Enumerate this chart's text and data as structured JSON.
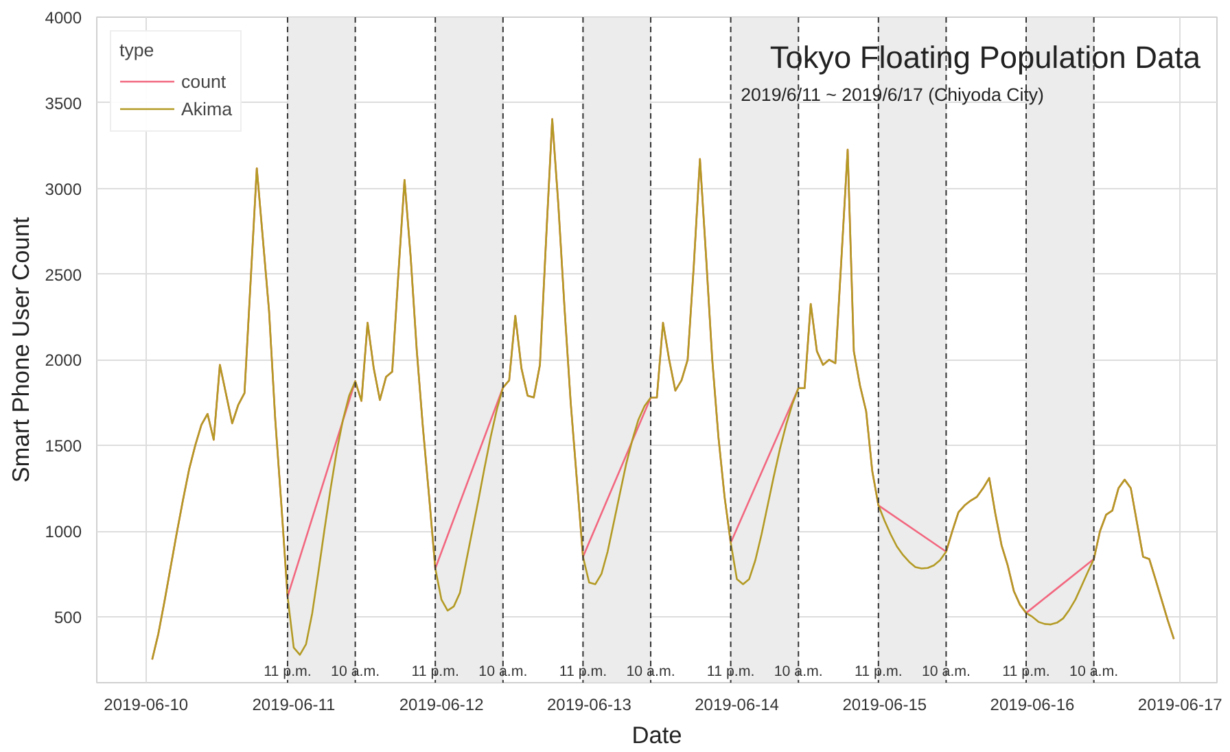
{
  "chart_data": {
    "type": "line",
    "title": "Tokyo Floating Population Data",
    "subtitle": "2019/6/11 ~ 2019/6/17 (Chiyoda City)",
    "xlabel": "Date",
    "ylabel": "Smart Phone User Count",
    "legend_title": "type",
    "legend": "top left",
    "grid": true,
    "xlim": [
      "2019-06-09T16:00",
      "2019-06-17T06:00"
    ],
    "xticks": [
      {
        "value": "2019-06-10",
        "label": "2019-06-10"
      },
      {
        "value": "2019-06-11",
        "label": "2019-06-11"
      },
      {
        "value": "2019-06-12",
        "label": "2019-06-12"
      },
      {
        "value": "2019-06-13",
        "label": "2019-06-13"
      },
      {
        "value": "2019-06-14",
        "label": "2019-06-14"
      },
      {
        "value": "2019-06-15",
        "label": "2019-06-15"
      },
      {
        "value": "2019-06-16",
        "label": "2019-06-16"
      },
      {
        "value": "2019-06-17",
        "label": "2019-06-17"
      }
    ],
    "ylim": [
      115,
      4000
    ],
    "yticks": [
      500,
      1000,
      1500,
      2000,
      2500,
      3000,
      3500,
      4000
    ],
    "x": [
      "2019-06-10T01:00",
      "2019-06-10T02:00",
      "2019-06-10T03:00",
      "2019-06-10T04:00",
      "2019-06-10T05:00",
      "2019-06-10T06:00",
      "2019-06-10T07:00",
      "2019-06-10T08:00",
      "2019-06-10T09:00",
      "2019-06-10T10:00",
      "2019-06-10T11:00",
      "2019-06-10T12:00",
      "2019-06-10T13:00",
      "2019-06-10T14:00",
      "2019-06-10T15:00",
      "2019-06-10T16:00",
      "2019-06-10T17:00",
      "2019-06-10T18:00",
      "2019-06-10T19:00",
      "2019-06-10T20:00",
      "2019-06-10T21:00",
      "2019-06-10T22:00",
      "2019-06-10T23:00",
      "2019-06-11T00:00",
      "2019-06-11T01:00",
      "2019-06-11T02:00",
      "2019-06-11T03:00",
      "2019-06-11T04:00",
      "2019-06-11T05:00",
      "2019-06-11T06:00",
      "2019-06-11T07:00",
      "2019-06-11T08:00",
      "2019-06-11T09:00",
      "2019-06-11T10:00",
      "2019-06-11T11:00",
      "2019-06-11T12:00",
      "2019-06-11T13:00",
      "2019-06-11T14:00",
      "2019-06-11T15:00",
      "2019-06-11T16:00",
      "2019-06-11T17:00",
      "2019-06-11T18:00",
      "2019-06-11T19:00",
      "2019-06-11T20:00",
      "2019-06-11T21:00",
      "2019-06-11T22:00",
      "2019-06-11T23:00",
      "2019-06-12T00:00",
      "2019-06-12T01:00",
      "2019-06-12T02:00",
      "2019-06-12T03:00",
      "2019-06-12T04:00",
      "2019-06-12T05:00",
      "2019-06-12T06:00",
      "2019-06-12T07:00",
      "2019-06-12T08:00",
      "2019-06-12T09:00",
      "2019-06-12T10:00",
      "2019-06-12T11:00",
      "2019-06-12T12:00",
      "2019-06-12T13:00",
      "2019-06-12T14:00",
      "2019-06-12T15:00",
      "2019-06-12T16:00",
      "2019-06-12T17:00",
      "2019-06-12T18:00",
      "2019-06-12T19:00",
      "2019-06-12T20:00",
      "2019-06-12T21:00",
      "2019-06-12T22:00",
      "2019-06-12T23:00",
      "2019-06-13T00:00",
      "2019-06-13T01:00",
      "2019-06-13T02:00",
      "2019-06-13T03:00",
      "2019-06-13T04:00",
      "2019-06-13T05:00",
      "2019-06-13T06:00",
      "2019-06-13T07:00",
      "2019-06-13T08:00",
      "2019-06-13T09:00",
      "2019-06-13T10:00",
      "2019-06-13T11:00",
      "2019-06-13T12:00",
      "2019-06-13T13:00",
      "2019-06-13T14:00",
      "2019-06-13T15:00",
      "2019-06-13T16:00",
      "2019-06-13T17:00",
      "2019-06-13T18:00",
      "2019-06-13T19:00",
      "2019-06-13T20:00",
      "2019-06-13T21:00",
      "2019-06-13T22:00",
      "2019-06-13T23:00",
      "2019-06-14T00:00",
      "2019-06-14T01:00",
      "2019-06-14T02:00",
      "2019-06-14T03:00",
      "2019-06-14T04:00",
      "2019-06-14T05:00",
      "2019-06-14T06:00",
      "2019-06-14T07:00",
      "2019-06-14T08:00",
      "2019-06-14T09:00",
      "2019-06-14T10:00",
      "2019-06-14T11:00",
      "2019-06-14T12:00",
      "2019-06-14T13:00",
      "2019-06-14T14:00",
      "2019-06-14T15:00",
      "2019-06-14T16:00",
      "2019-06-14T17:00",
      "2019-06-14T18:00",
      "2019-06-14T19:00",
      "2019-06-14T20:00",
      "2019-06-14T21:00",
      "2019-06-14T22:00",
      "2019-06-14T23:00",
      "2019-06-15T00:00",
      "2019-06-15T01:00",
      "2019-06-15T02:00",
      "2019-06-15T03:00",
      "2019-06-15T04:00",
      "2019-06-15T05:00",
      "2019-06-15T06:00",
      "2019-06-15T07:00",
      "2019-06-15T08:00",
      "2019-06-15T09:00",
      "2019-06-15T10:00",
      "2019-06-15T11:00",
      "2019-06-15T12:00",
      "2019-06-15T13:00",
      "2019-06-15T14:00",
      "2019-06-15T15:00",
      "2019-06-15T16:00",
      "2019-06-15T17:00",
      "2019-06-15T18:00",
      "2019-06-15T19:00",
      "2019-06-15T20:00",
      "2019-06-15T21:00",
      "2019-06-15T22:00",
      "2019-06-15T23:00",
      "2019-06-16T00:00",
      "2019-06-16T01:00",
      "2019-06-16T02:00",
      "2019-06-16T03:00",
      "2019-06-16T04:00",
      "2019-06-16T05:00",
      "2019-06-16T06:00",
      "2019-06-16T07:00",
      "2019-06-16T08:00",
      "2019-06-16T09:00",
      "2019-06-16T10:00",
      "2019-06-16T11:00",
      "2019-06-16T12:00",
      "2019-06-16T13:00",
      "2019-06-16T14:00",
      "2019-06-16T15:00",
      "2019-06-16T16:00",
      "2019-06-16T17:00",
      "2019-06-16T18:00",
      "2019-06-16T19:00",
      "2019-06-16T20:00",
      "2019-06-16T21:00",
      "2019-06-16T22:00",
      "2019-06-16T23:00"
    ],
    "series": [
      {
        "name": "count",
        "color": "#f2677f",
        "x": [
          "2019-06-10T01:00",
          "2019-06-10T02:00",
          "2019-06-10T03:00",
          "2019-06-10T04:00",
          "2019-06-10T05:00",
          "2019-06-10T06:00",
          "2019-06-10T07:00",
          "2019-06-10T08:00",
          "2019-06-10T09:00",
          "2019-06-10T10:00",
          "2019-06-10T11:00",
          "2019-06-10T12:00",
          "2019-06-10T13:00",
          "2019-06-10T14:00",
          "2019-06-10T15:00",
          "2019-06-10T16:00",
          "2019-06-10T17:00",
          "2019-06-10T18:00",
          "2019-06-10T19:00",
          "2019-06-10T20:00",
          "2019-06-10T21:00",
          "2019-06-10T22:00",
          "2019-06-10T23:00",
          "2019-06-11T10:00",
          "2019-06-11T11:00",
          "2019-06-11T12:00",
          "2019-06-11T13:00",
          "2019-06-11T14:00",
          "2019-06-11T15:00",
          "2019-06-11T16:00",
          "2019-06-11T17:00",
          "2019-06-11T18:00",
          "2019-06-11T19:00",
          "2019-06-11T20:00",
          "2019-06-11T21:00",
          "2019-06-11T22:00",
          "2019-06-11T23:00",
          "2019-06-12T10:00",
          "2019-06-12T11:00",
          "2019-06-12T12:00",
          "2019-06-12T13:00",
          "2019-06-12T14:00",
          "2019-06-12T15:00",
          "2019-06-12T16:00",
          "2019-06-12T17:00",
          "2019-06-12T18:00",
          "2019-06-12T19:00",
          "2019-06-12T20:00",
          "2019-06-12T21:00",
          "2019-06-12T22:00",
          "2019-06-12T23:00",
          "2019-06-13T10:00",
          "2019-06-13T11:00",
          "2019-06-13T12:00",
          "2019-06-13T13:00",
          "2019-06-13T14:00",
          "2019-06-13T15:00",
          "2019-06-13T16:00",
          "2019-06-13T17:00",
          "2019-06-13T18:00",
          "2019-06-13T19:00",
          "2019-06-13T20:00",
          "2019-06-13T21:00",
          "2019-06-13T22:00",
          "2019-06-13T23:00",
          "2019-06-14T10:00",
          "2019-06-14T11:00",
          "2019-06-14T12:00",
          "2019-06-14T13:00",
          "2019-06-14T14:00",
          "2019-06-14T15:00",
          "2019-06-14T16:00",
          "2019-06-14T17:00",
          "2019-06-14T18:00",
          "2019-06-14T19:00",
          "2019-06-14T20:00",
          "2019-06-14T21:00",
          "2019-06-14T22:00",
          "2019-06-14T23:00",
          "2019-06-15T10:00",
          "2019-06-15T11:00",
          "2019-06-15T12:00",
          "2019-06-15T13:00",
          "2019-06-15T14:00",
          "2019-06-15T15:00",
          "2019-06-15T16:00",
          "2019-06-15T17:00",
          "2019-06-15T18:00",
          "2019-06-15T19:00",
          "2019-06-15T20:00",
          "2019-06-15T21:00",
          "2019-06-15T22:00",
          "2019-06-15T23:00",
          "2019-06-16T10:00",
          "2019-06-16T11:00",
          "2019-06-16T12:00",
          "2019-06-16T13:00",
          "2019-06-16T14:00",
          "2019-06-16T15:00",
          "2019-06-16T16:00",
          "2019-06-16T17:00",
          "2019-06-16T18:00",
          "2019-06-16T19:00",
          "2019-06-16T20:00",
          "2019-06-16T21:00",
          "2019-06-16T22:00",
          "2019-06-16T23:00"
        ],
        "values": [
          250,
          400,
          590,
          790,
          990,
          1180,
          1360,
          1500,
          1620,
          1684,
          1533,
          1970,
          1800,
          1629,
          1738,
          1806,
          2460,
          3118,
          2700,
          2280,
          1650,
          1150,
          618,
          1875,
          1760,
          2216,
          1950,
          1765,
          1900,
          1930,
          2500,
          3050,
          2600,
          2050,
          1600,
          1200,
          782,
          1838,
          1880,
          2257,
          1950,
          1790,
          1780,
          1970,
          2700,
          3405,
          2900,
          2300,
          1750,
          1300,
          850,
          1779,
          1780,
          2216,
          2000,
          1820,
          1880,
          2000,
          2550,
          3172,
          2600,
          2000,
          1550,
          1200,
          932,
          1834,
          1834,
          2326,
          2050,
          1970,
          2000,
          1980,
          2600,
          3227,
          2050,
          1850,
          1700,
          1350,
          1150,
          880,
          1000,
          1110,
          1150,
          1178,
          1200,
          1250,
          1310,
          1100,
          918,
          800,
          650,
          570,
          522,
          837,
          1000,
          1096,
          1120,
          1250,
          1300,
          1250,
          1050,
          850,
          837,
          720,
          600,
          480,
          370
        ]
      },
      {
        "name": "Akima",
        "color": "#b39a24",
        "values": [
          250,
          400,
          590,
          790,
          990,
          1180,
          1360,
          1500,
          1620,
          1684,
          1533,
          1970,
          1800,
          1629,
          1738,
          1806,
          2460,
          3118,
          2700,
          2280,
          1650,
          1150,
          618,
          320,
          278,
          340,
          520,
          760,
          1010,
          1250,
          1470,
          1650,
          1790,
          1875,
          1760,
          2216,
          1950,
          1765,
          1900,
          1930,
          2500,
          3050,
          2600,
          2050,
          1600,
          1200,
          782,
          600,
          536,
          560,
          640,
          820,
          1000,
          1180,
          1370,
          1550,
          1710,
          1838,
          1880,
          2257,
          1950,
          1790,
          1780,
          1970,
          2700,
          3405,
          2900,
          2300,
          1750,
          1300,
          850,
          700,
          690,
          750,
          880,
          1050,
          1220,
          1390,
          1530,
          1650,
          1730,
          1779,
          1780,
          2216,
          2000,
          1820,
          1880,
          2000,
          2550,
          3172,
          2600,
          2000,
          1550,
          1200,
          932,
          720,
          690,
          720,
          830,
          980,
          1150,
          1320,
          1480,
          1620,
          1740,
          1834,
          1834,
          2326,
          2050,
          1970,
          2000,
          1980,
          2600,
          3227,
          2050,
          1850,
          1700,
          1350,
          1150,
          1060,
          980,
          910,
          860,
          820,
          790,
          782,
          785,
          800,
          830,
          880,
          1000,
          1110,
          1150,
          1178,
          1200,
          1250,
          1310,
          1100,
          918,
          800,
          650,
          570,
          522,
          500,
          470,
          458,
          455,
          465,
          490,
          540,
          600,
          680,
          760,
          837,
          1000,
          1096,
          1120,
          1250,
          1300,
          1250,
          1050,
          850,
          837,
          720,
          600,
          480,
          370
        ]
      }
    ],
    "bands": [
      {
        "axis": "x",
        "from": "2019-06-10T23:00",
        "to": "2019-06-11T10:00",
        "color": "#ececec"
      },
      {
        "axis": "x",
        "from": "2019-06-11T23:00",
        "to": "2019-06-12T10:00",
        "color": "#ececec"
      },
      {
        "axis": "x",
        "from": "2019-06-12T23:00",
        "to": "2019-06-13T10:00",
        "color": "#ececec"
      },
      {
        "axis": "x",
        "from": "2019-06-13T23:00",
        "to": "2019-06-14T10:00",
        "color": "#ececec"
      },
      {
        "axis": "x",
        "from": "2019-06-14T23:00",
        "to": "2019-06-15T10:00",
        "color": "#ececec"
      },
      {
        "axis": "x",
        "from": "2019-06-15T23:00",
        "to": "2019-06-16T10:00",
        "color": "#ececec"
      }
    ],
    "ref_lines": [
      {
        "axis": "x",
        "value": "2019-06-10T23:00",
        "label": "11 p.m.",
        "color": "#333333",
        "line_style": "dashed"
      },
      {
        "axis": "x",
        "value": "2019-06-11T10:00",
        "label": "10 a.m.",
        "color": "#333333",
        "line_style": "dashed"
      },
      {
        "axis": "x",
        "value": "2019-06-11T23:00",
        "label": "11 p.m.",
        "color": "#333333",
        "line_style": "dashed"
      },
      {
        "axis": "x",
        "value": "2019-06-12T10:00",
        "label": "10 a.m.",
        "color": "#333333",
        "line_style": "dashed"
      },
      {
        "axis": "x",
        "value": "2019-06-12T23:00",
        "label": "11 p.m.",
        "color": "#333333",
        "line_style": "dashed"
      },
      {
        "axis": "x",
        "value": "2019-06-13T10:00",
        "label": "10 a.m.",
        "color": "#333333",
        "line_style": "dashed"
      },
      {
        "axis": "x",
        "value": "2019-06-13T23:00",
        "label": "11 p.m.",
        "color": "#333333",
        "line_style": "dashed"
      },
      {
        "axis": "x",
        "value": "2019-06-14T10:00",
        "label": "10 a.m.",
        "color": "#333333",
        "line_style": "dashed"
      },
      {
        "axis": "x",
        "value": "2019-06-14T23:00",
        "label": "11 p.m.",
        "color": "#333333",
        "line_style": "dashed"
      },
      {
        "axis": "x",
        "value": "2019-06-15T10:00",
        "label": "10 a.m.",
        "color": "#333333",
        "line_style": "dashed"
      },
      {
        "axis": "x",
        "value": "2019-06-15T23:00",
        "label": "11 p.m.",
        "color": "#333333",
        "line_style": "dashed"
      },
      {
        "axis": "x",
        "value": "2019-06-16T10:00",
        "label": "10 a.m.",
        "color": "#333333",
        "line_style": "dashed"
      }
    ]
  }
}
